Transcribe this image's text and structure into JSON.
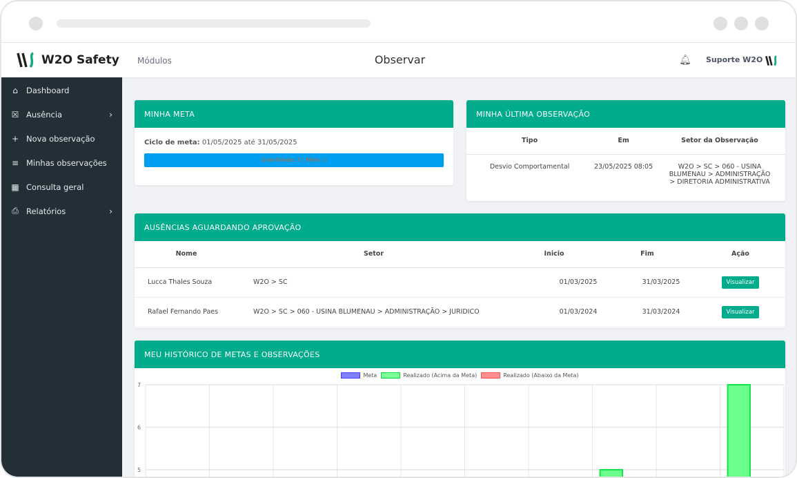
{
  "header": {
    "brand": "W2O Safety",
    "modules": "Módulos",
    "title": "Observar",
    "support": "Suporte W2O"
  },
  "sidebar": {
    "items": [
      {
        "label": "Dashboard",
        "icon": "home-icon",
        "glyph": "⌂"
      },
      {
        "label": "Ausência",
        "icon": "calendar-x-icon",
        "glyph": "☒",
        "chevron": true
      },
      {
        "label": "Nova observação",
        "icon": "plus-icon",
        "glyph": "+"
      },
      {
        "label": "Minhas observações",
        "icon": "list-icon",
        "glyph": "≡"
      },
      {
        "label": "Consulta geral",
        "icon": "grid-icon",
        "glyph": "▦"
      },
      {
        "label": "Relatórios",
        "icon": "printer-icon",
        "glyph": "⎙",
        "chevron": true
      }
    ]
  },
  "meta": {
    "title": "MINHA META",
    "cycle_label": "Ciclo de meta:",
    "cycle_value": "01/05/2025 até 31/05/2025",
    "bar_text": "Quantidade: 3 | Meta: 1",
    "progress_percent": 100,
    "bar_color": "#00a0f0"
  },
  "last_obs": {
    "title": "MINHA ÚLTIMA OBSERVAÇÃO",
    "headers": [
      "Tipo",
      "Em",
      "Setor da Observação"
    ],
    "row": [
      "Desvio Comportamental",
      "23/05/2025 08:05",
      "W2O > SC > 060 - USINA BLUMENAU > ADMINISTRAÇÃO > DIRETORIA ADMINISTRATIVA"
    ]
  },
  "absences": {
    "title": "AUSÊNCIAS AGUARDANDO APROVAÇÃO",
    "headers": [
      "Nome",
      "Setor",
      "Inicio",
      "Fim",
      "Ação"
    ],
    "rows": [
      {
        "nome": "Lucca Thales Souza",
        "setor": "W2O > SC",
        "inicio": "01/03/2025",
        "fim": "31/03/2025",
        "acao": "Visualizar"
      },
      {
        "nome": "Rafael Fernando Paes",
        "setor": "W2O > SC > 060 - USINA BLUMENAU > ADMINISTRAÇÃO > JURIDICO",
        "inicio": "01/03/2024",
        "fim": "31/03/2024",
        "acao": "Visualizar"
      }
    ]
  },
  "history": {
    "title": "MEU HISTÓRICO DE METAS E OBSERVAÇÕES"
  },
  "chart_data": {
    "type": "bar",
    "series": [
      {
        "name": "Meta",
        "color": "#0000ff80",
        "values": []
      },
      {
        "name": "Realizado (Acima da Meta)",
        "color": "#00ff4480",
        "values": [
          null,
          null,
          null,
          null,
          null,
          null,
          null,
          5,
          null,
          7
        ]
      },
      {
        "name": "Realizado (Abaixo da Meta)",
        "color": "#ff000080",
        "values": []
      }
    ],
    "yticks": [
      "7",
      "6",
      "5"
    ],
    "ylim_visible": [
      4.85,
      7
    ],
    "grid": true,
    "legend": "top"
  },
  "colors": {
    "accent": "#00ac8b",
    "sidebar": "#232f36"
  }
}
